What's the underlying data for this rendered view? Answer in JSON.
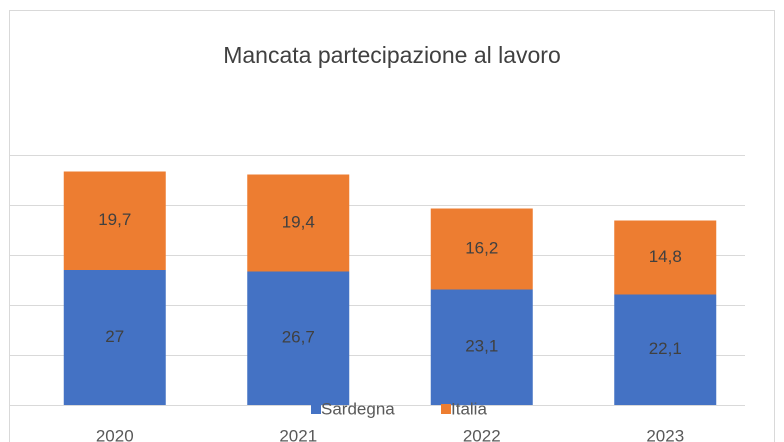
{
  "chart_data": {
    "type": "stacked_bar",
    "title": "Mancata partecipazione al lavoro",
    "categories": [
      "2020",
      "2021",
      "2022",
      "2023"
    ],
    "series": [
      {
        "name": "Sardegna",
        "color": "#4472c4",
        "values": [
          27,
          26.7,
          23.1,
          22.1
        ],
        "value_labels": [
          "27",
          "26,7",
          "23,1",
          "22,1"
        ]
      },
      {
        "name": "Italia",
        "color": "#ed7d31",
        "values": [
          19.7,
          19.4,
          16.2,
          14.8
        ],
        "value_labels": [
          "19,7",
          "19,4",
          "16,2",
          "14,8"
        ]
      }
    ],
    "ylim": [
      0,
      50
    ],
    "yticks": [
      0,
      10,
      20,
      30,
      40,
      50
    ],
    "grid": true,
    "legend": "bottom"
  }
}
